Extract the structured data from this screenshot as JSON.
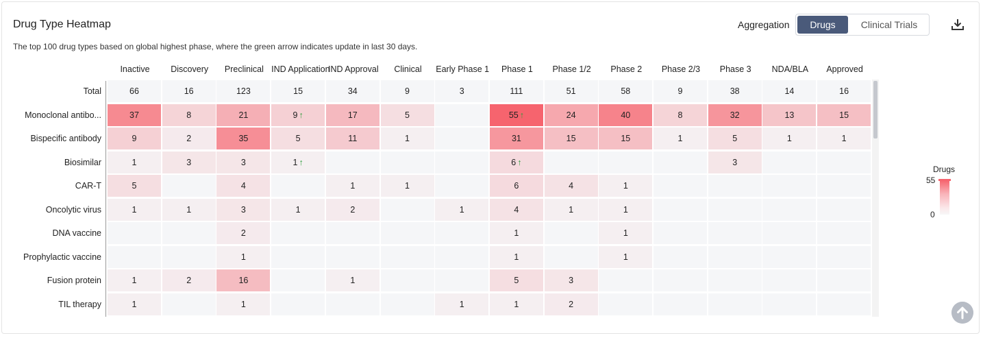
{
  "header": {
    "title": "Drug Type Heatmap",
    "subtitle": "The top 100 drug types based on global highest phase, where the green arrow indicates update in last 30 days.",
    "aggregation_label": "Aggregation",
    "toggle_options": [
      "Drugs",
      "Clinical Trials"
    ],
    "toggle_selected": "Drugs"
  },
  "icons": {
    "download": "download-icon",
    "scroll_top": "arrow-up-icon",
    "update_arrow": "green-arrow-up-icon"
  },
  "colors": {
    "accent": "#4a5a7a",
    "heat_max": "#f6646e",
    "heat_empty": "#f5f6f8",
    "update_arrow": "#2e9e3e"
  },
  "legend": {
    "title": "Drugs",
    "max": "55",
    "min": "0"
  },
  "chart_data": {
    "type": "heatmap",
    "title": "Drug Type Heatmap",
    "x_categories": [
      "Inactive",
      "Discovery",
      "Preclinical",
      "IND Application",
      "IND Approval",
      "Clinical",
      "Early Phase 1",
      "Phase 1",
      "Phase 1/2",
      "Phase 2",
      "Phase 2/3",
      "Phase 3",
      "NDA/BLA",
      "Approved"
    ],
    "rows": [
      {
        "label": "Total",
        "values": [
          66,
          16,
          123,
          15,
          34,
          9,
          3,
          111,
          51,
          58,
          9,
          38,
          14,
          16
        ],
        "arrows": []
      },
      {
        "label": "Monoclonal antibo...",
        "values": [
          37,
          8,
          21,
          9,
          17,
          5,
          null,
          55,
          24,
          40,
          8,
          32,
          13,
          15
        ],
        "arrows": [
          3,
          7
        ]
      },
      {
        "label": "Bispecific antibody",
        "values": [
          9,
          2,
          35,
          5,
          11,
          1,
          null,
          31,
          15,
          15,
          1,
          5,
          1,
          1
        ],
        "arrows": []
      },
      {
        "label": "Biosimilar",
        "values": [
          1,
          3,
          3,
          1,
          null,
          null,
          null,
          6,
          null,
          null,
          null,
          3,
          null,
          null
        ],
        "arrows": [
          3,
          7
        ]
      },
      {
        "label": "CAR-T",
        "values": [
          5,
          null,
          4,
          null,
          1,
          1,
          null,
          6,
          4,
          1,
          null,
          null,
          null,
          null
        ],
        "arrows": []
      },
      {
        "label": "Oncolytic virus",
        "values": [
          1,
          1,
          3,
          1,
          2,
          null,
          1,
          4,
          1,
          1,
          null,
          null,
          null,
          null
        ],
        "arrows": []
      },
      {
        "label": "DNA vaccine",
        "values": [
          null,
          null,
          2,
          null,
          null,
          null,
          null,
          1,
          null,
          1,
          null,
          null,
          null,
          null
        ],
        "arrows": []
      },
      {
        "label": "Prophylactic vaccine",
        "values": [
          null,
          null,
          1,
          null,
          null,
          null,
          null,
          1,
          null,
          1,
          null,
          null,
          null,
          null
        ],
        "arrows": []
      },
      {
        "label": "Fusion protein",
        "values": [
          1,
          2,
          16,
          null,
          1,
          null,
          null,
          5,
          3,
          null,
          null,
          null,
          null,
          null
        ],
        "arrows": []
      },
      {
        "label": "TIL therapy",
        "values": [
          1,
          null,
          1,
          null,
          null,
          null,
          1,
          1,
          2,
          null,
          null,
          null,
          null,
          null
        ],
        "arrows": []
      }
    ],
    "color_range": [
      0,
      55
    ],
    "legend_placement": "right"
  }
}
